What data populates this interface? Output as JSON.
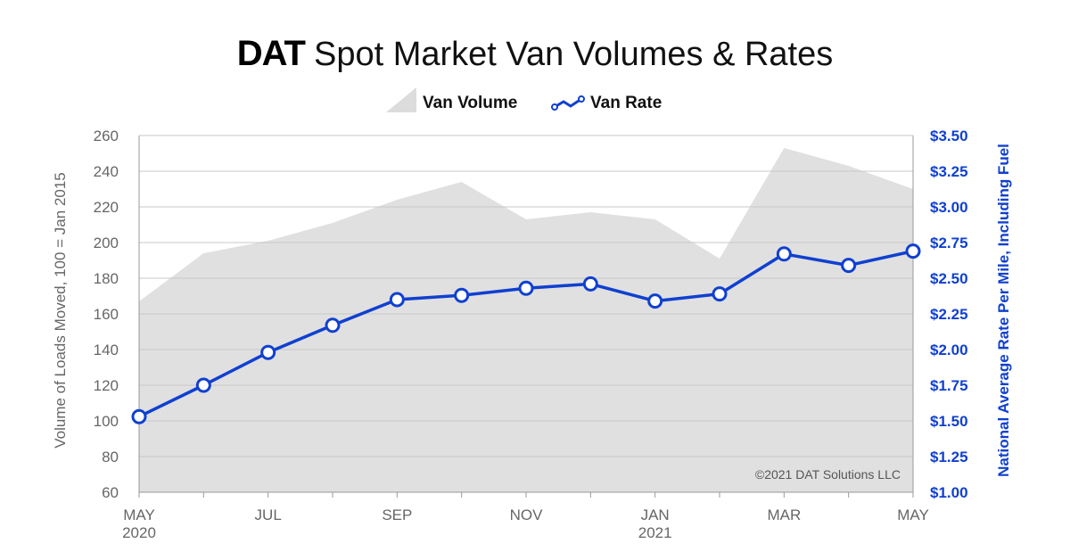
{
  "title": {
    "brand": "DAT",
    "rest": "Spot Market Van Volumes & Rates"
  },
  "legend": {
    "volume_label": "Van Volume",
    "rate_label": "Van Rate"
  },
  "copyright": "©2021 DAT Solutions LLC",
  "colors": {
    "area_fill": "#e0e0e0",
    "rate_line": "#1040d0",
    "grid": "#c8c8c8",
    "left_axis_text": "#666666",
    "right_axis_text": "#1040d0"
  },
  "chart_data": {
    "type": "area+line",
    "x": [
      "May 2020",
      "Jun 2020",
      "Jul 2020",
      "Aug 2020",
      "Sep 2020",
      "Oct 2020",
      "Nov 2020",
      "Dec 2020",
      "Jan 2021",
      "Feb 2021",
      "Mar 2021",
      "Apr 2021",
      "May 2021"
    ],
    "x_tick_labels": [
      {
        "index": 0,
        "lines": [
          "MAY",
          "2020"
        ]
      },
      {
        "index": 2,
        "lines": [
          "JUL"
        ]
      },
      {
        "index": 4,
        "lines": [
          "SEP"
        ]
      },
      {
        "index": 6,
        "lines": [
          "NOV"
        ]
      },
      {
        "index": 8,
        "lines": [
          "JAN",
          "2021"
        ]
      },
      {
        "index": 10,
        "lines": [
          "MAR"
        ]
      },
      {
        "index": 12,
        "lines": [
          "MAY"
        ]
      }
    ],
    "series": [
      {
        "name": "Van Volume",
        "type": "area",
        "axis": "left",
        "values": [
          167,
          194,
          201,
          211,
          224,
          234,
          213,
          217,
          213,
          191,
          253,
          243,
          230
        ]
      },
      {
        "name": "Van Rate",
        "type": "line",
        "axis": "right",
        "values": [
          1.53,
          1.75,
          1.98,
          2.17,
          2.35,
          2.38,
          2.43,
          2.46,
          2.34,
          2.39,
          2.67,
          2.59,
          2.69
        ]
      }
    ],
    "y_left": {
      "label": "Volume of Loads Moved, 100 = Jan 2015",
      "range": [
        60,
        260
      ],
      "ticks": [
        "260",
        "240",
        "220",
        "200",
        "180",
        "160",
        "140",
        "120",
        "100",
        "80",
        "60"
      ]
    },
    "y_right": {
      "label": "National Average Rate Per Mile, Including Fuel",
      "range": [
        1.0,
        3.5
      ],
      "ticks": [
        "$3.50",
        "$3.25",
        "$3.00",
        "$2.75",
        "$2.50",
        "$2.25",
        "$2.00",
        "$1.75",
        "$1.50",
        "$1.25",
        "$1.00"
      ]
    },
    "grid": true,
    "legend_position": "top-center"
  }
}
